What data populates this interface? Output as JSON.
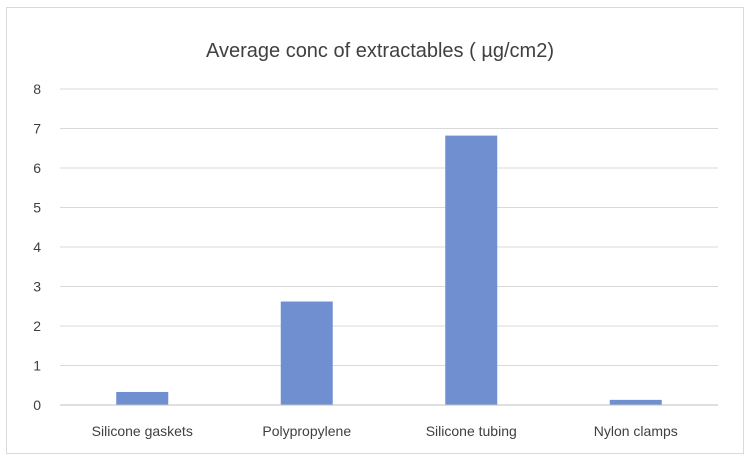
{
  "chart_data": {
    "type": "bar",
    "title": "Average conc of extractables ( µg/cm2)",
    "xlabel": "",
    "ylabel": "",
    "categories": [
      "Silicone gaskets",
      "Polypropylene",
      "Silicone tubing",
      "Nylon clamps"
    ],
    "values": [
      0.33,
      2.62,
      6.82,
      0.13
    ],
    "ylim": [
      0,
      8
    ],
    "yticks": [
      0,
      1,
      2,
      3,
      4,
      5,
      6,
      7,
      8
    ],
    "grid": true,
    "legend": "none",
    "bar_color": "#6f8fd0",
    "grid_color": "#d9d9d9",
    "axis_color": "#bfbfbf"
  }
}
